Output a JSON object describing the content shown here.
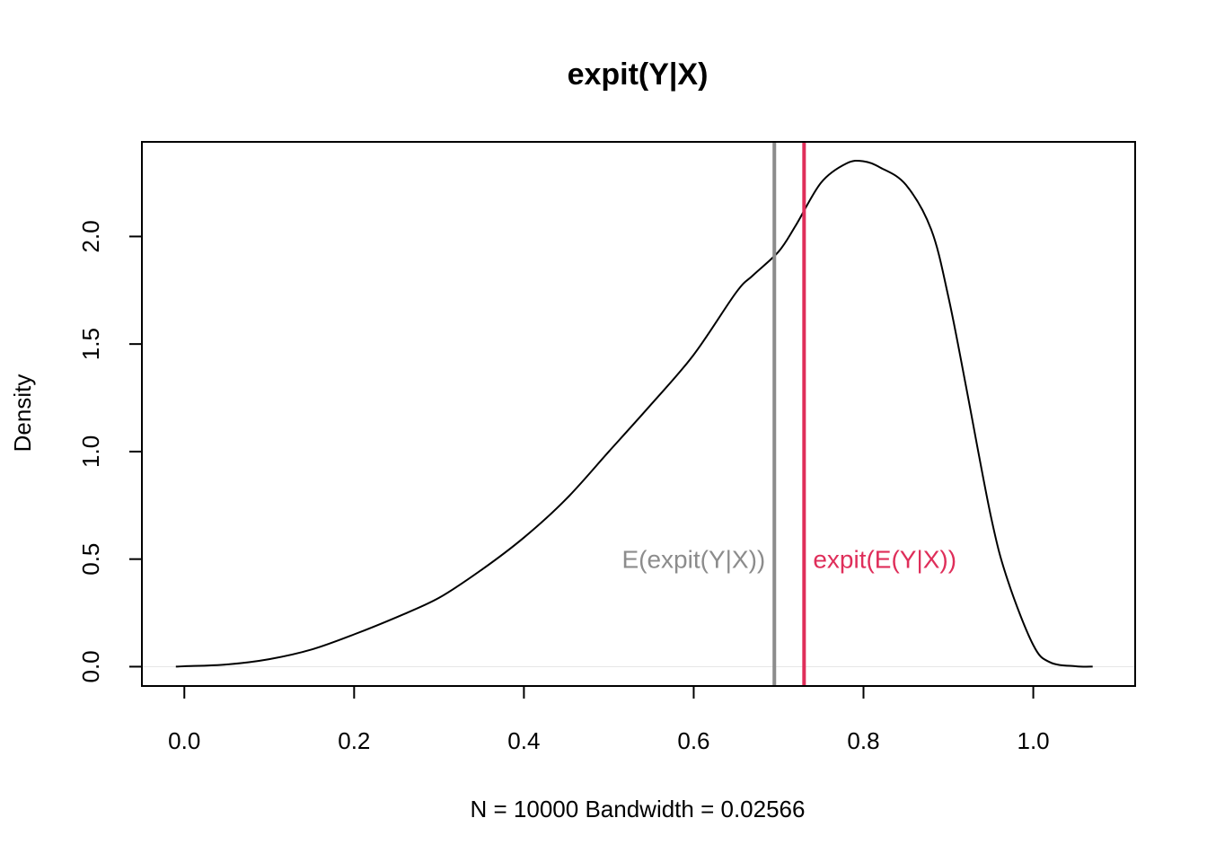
{
  "chart_data": {
    "type": "line",
    "title": "expit(Y|X)",
    "xlabel": "N = 10000   Bandwidth = 0.02566",
    "ylabel": "Density",
    "xlim": [
      -0.05,
      1.12
    ],
    "ylim": [
      -0.09,
      2.44
    ],
    "x_ticks": [
      0.0,
      0.2,
      0.4,
      0.6,
      0.8,
      1.0
    ],
    "x_tick_labels": [
      "0.0",
      "0.2",
      "0.4",
      "0.6",
      "0.8",
      "1.0"
    ],
    "y_ticks": [
      0.0,
      0.5,
      1.0,
      1.5,
      2.0
    ],
    "y_tick_labels": [
      "0.0",
      "0.5",
      "1.0",
      "1.5",
      "2.0"
    ],
    "grid": false,
    "baseline": 0,
    "baseline_color": "#e6e6e6",
    "series": [
      {
        "color": "#000000",
        "x": [
          -0.01,
          0.0,
          0.05,
          0.1,
          0.15,
          0.2,
          0.25,
          0.3,
          0.35,
          0.4,
          0.45,
          0.5,
          0.55,
          0.6,
          0.65,
          0.67,
          0.7,
          0.72,
          0.75,
          0.78,
          0.8,
          0.82,
          0.85,
          0.88,
          0.9,
          0.92,
          0.95,
          0.97,
          1.0,
          1.02,
          1.05,
          1.07
        ],
        "y": [
          0.0,
          0.002,
          0.01,
          0.035,
          0.08,
          0.15,
          0.23,
          0.32,
          0.45,
          0.6,
          0.78,
          1.0,
          1.22,
          1.45,
          1.74,
          1.82,
          1.93,
          2.05,
          2.25,
          2.34,
          2.35,
          2.32,
          2.24,
          2.03,
          1.72,
          1.32,
          0.7,
          0.4,
          0.1,
          0.02,
          0.002,
          0.0
        ]
      }
    ],
    "vlines": [
      {
        "x": 0.695,
        "color": "#8c8c8c",
        "label": "E(expit(Y|X))",
        "label_side": "left",
        "label_y": 0.5
      },
      {
        "x": 0.73,
        "color": "#df2e5a",
        "label": "expit(E(Y|X))",
        "label_side": "right",
        "label_y": 0.5
      }
    ]
  }
}
